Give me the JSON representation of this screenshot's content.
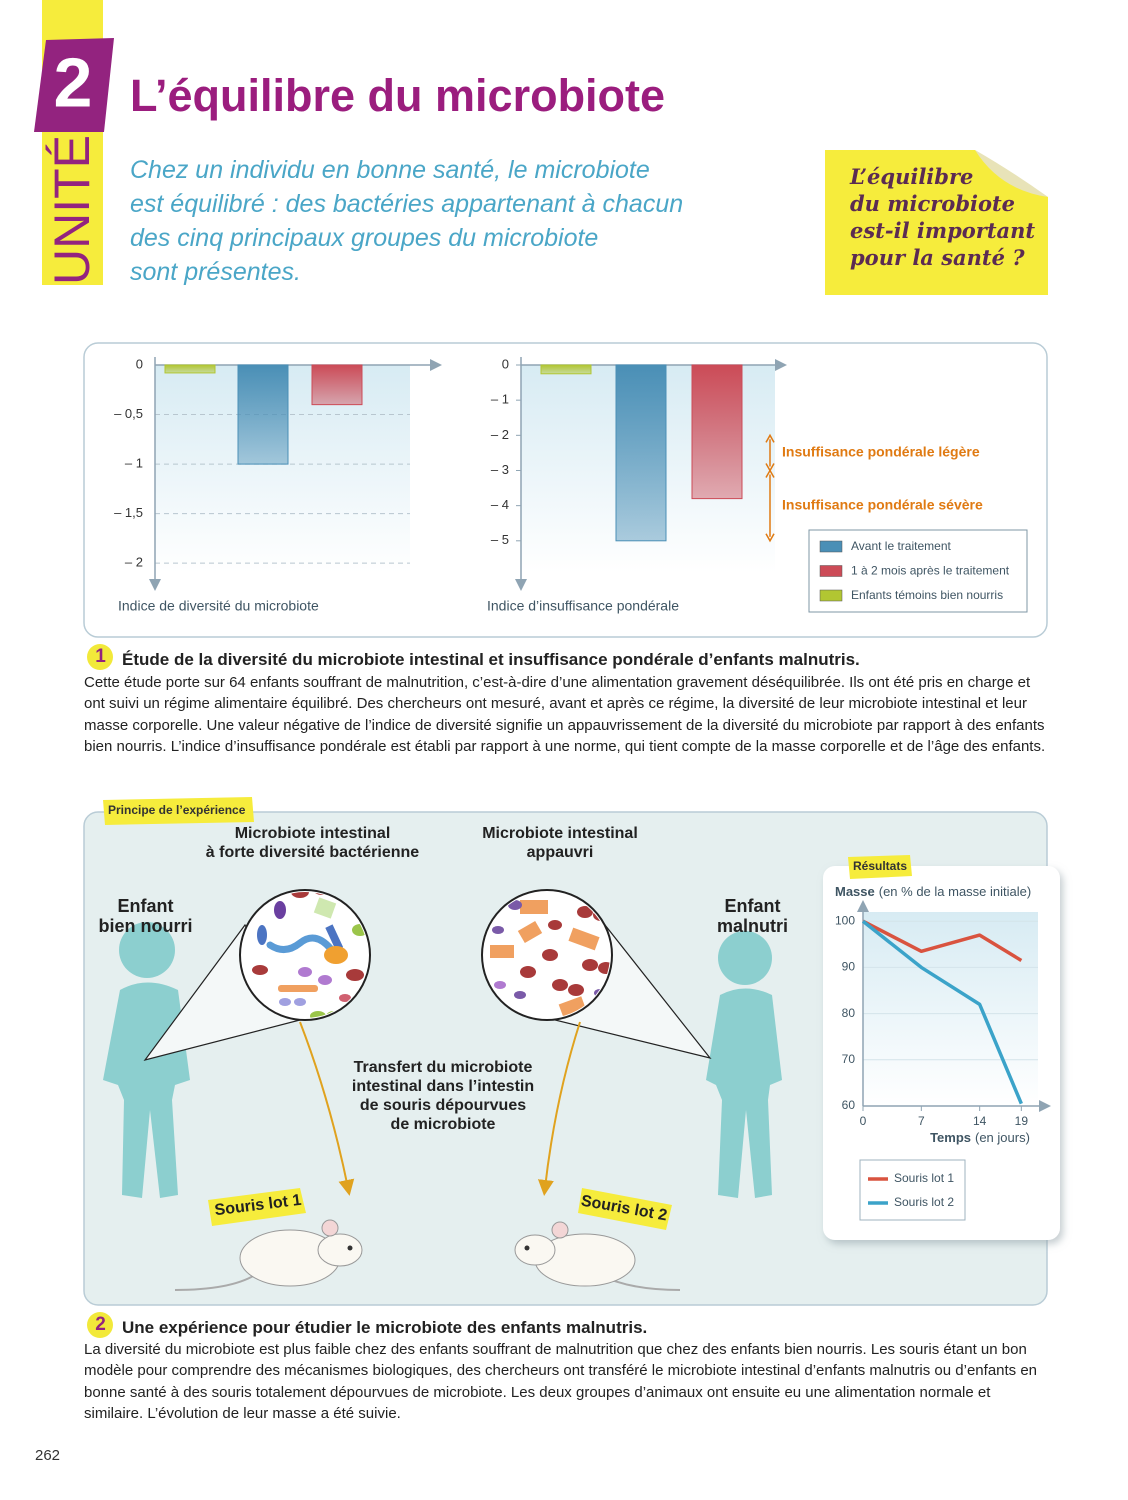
{
  "header": {
    "unit_number": "2",
    "unit_label": "UNITÉ",
    "title": "L’équilibre du microbiote",
    "intro": "Chez un individu en bonne santé, le microbiote\nest équilibré : des bactéries appartenant à chacun\ndes cinq principaux groupes du microbiote\nsont présentes.",
    "question": "L’équilibre\ndu microbiote\nest-il important\npour la santé ?"
  },
  "chart_data": [
    {
      "type": "bar",
      "x_label": "Indice de diversité du microbiote",
      "series": [
        {
          "color": "#4a8fb6",
          "values": [
            -1.0
          ]
        },
        {
          "color": "#cc4b57",
          "values": [
            -0.4
          ]
        },
        {
          "color": "#b2c632",
          "values": [
            -0.08
          ]
        }
      ],
      "ylim": [
        -2.2,
        0
      ],
      "yticks": [
        0,
        {
          "value": -0.5,
          "label": "– 0,5"
        },
        {
          "value": -1,
          "label": "– 1"
        },
        {
          "value": -1.5,
          "label": "– 1,5"
        },
        {
          "value": -2,
          "label": "– 2"
        }
      ],
      "grid": true
    },
    {
      "type": "bar",
      "x_label": "Indice d’insuffisance pondérale",
      "series": [
        {
          "name": "Avant le traitement",
          "color": "#4a8fb6",
          "values": [
            -5.0
          ]
        },
        {
          "name": "1 à 2 mois après le traitement",
          "color": "#cc4b57",
          "values": [
            -3.8
          ]
        },
        {
          "name": "Enfants témoins bien nourris",
          "color": "#b2c632",
          "values": [
            -0.25
          ]
        }
      ],
      "ylim": [
        -6.2,
        0
      ],
      "yticks": [
        0,
        {
          "value": -1,
          "label": "– 1"
        },
        {
          "value": -2,
          "label": "– 2"
        },
        {
          "value": -3,
          "label": "– 3"
        },
        {
          "value": -4,
          "label": "– 4"
        },
        {
          "value": -5,
          "label": "– 5"
        }
      ],
      "grid": false,
      "annotation_color": "#e07a12",
      "annotations": [
        {
          "text": "Insuffisance pondérale légère",
          "range": [
            -2,
            -3
          ]
        },
        {
          "text": "Insuffisance pondérale sévère",
          "range": [
            -3,
            -5
          ]
        }
      ]
    },
    {
      "type": "line",
      "title": "Résultats",
      "y_label": "Masse",
      "y_label_note": "(en % de la masse initiale)",
      "x_label": "Temps",
      "x_label_note": "(en jours)",
      "x": [
        0,
        7,
        14,
        19
      ],
      "series": [
        {
          "name": "Souris lot 1",
          "color": "#d9533f",
          "values": [
            100,
            93.5,
            97,
            91.5
          ]
        },
        {
          "name": "Souris lot 2",
          "color": "#3ba3c9",
          "values": [
            100,
            90,
            82,
            60.5
          ]
        }
      ],
      "xlim": [
        0,
        21
      ],
      "xticks": [
        0,
        7,
        14,
        19
      ],
      "ylim": [
        60,
        102
      ],
      "yticks": [
        60,
        70,
        80,
        90,
        100
      ],
      "grid": true
    }
  ],
  "document_1": {
    "number": "1",
    "title": "Étude de la diversité du microbiote intestinal et insuffisance pondérale d’enfants malnutris.",
    "text": "Cette étude porte sur 64 enfants souffrant de malnutrition, c’est-à-dire d’une alimentation gravement déséquilibrée. Ils ont été pris en charge et ont suivi un régime alimentaire équilibré. Des chercheurs ont mesuré, avant et après ce régime, la diversité de leur microbiote intestinal et leur masse corporelle. Une valeur négative de l’indice de diversité signifie un appauvrissement de la diversité du microbiote par rapport à des enfants bien nourris. L’indice d’insuffisance pondérale est établi par rapport à une norme, qui tient compte de la masse corporelle et de l’âge des enfants."
  },
  "diagram": {
    "tag": "Principe de l’expérience",
    "microbiota_rich": "Microbiote intestinal\nà forte diversité bactérienne",
    "microbiota_poor": "Microbiote intestinal\nappauvri",
    "child_healthy": "Enfant\nbien nourri",
    "child_malnourished": "Enfant\nmalnutri",
    "transfer": "Transfert du microbiote\nintestinal dans l’intestin\nde souris dépourvues\nde microbiote",
    "mice_1": "Souris lot 1",
    "mice_2": "Souris lot 2"
  },
  "document_2": {
    "number": "2",
    "title": "Une expérience pour étudier le microbiote des enfants malnutris.",
    "text": "La diversité du microbiote est plus faible chez des enfants souffrant de malnutrition que chez des enfants bien nourris. Les souris étant un bon modèle pour comprendre des mécanismes biologiques, des chercheurs ont transféré le microbiote intestinal d’enfants malnutris ou d’enfants en bonne santé à des souris totalement dépourvues de microbiote. Les deux groupes d’animaux ont ensuite eu une alimentation normale et similaire. L’évolution de leur masse a été suivie."
  },
  "page_number": "262"
}
